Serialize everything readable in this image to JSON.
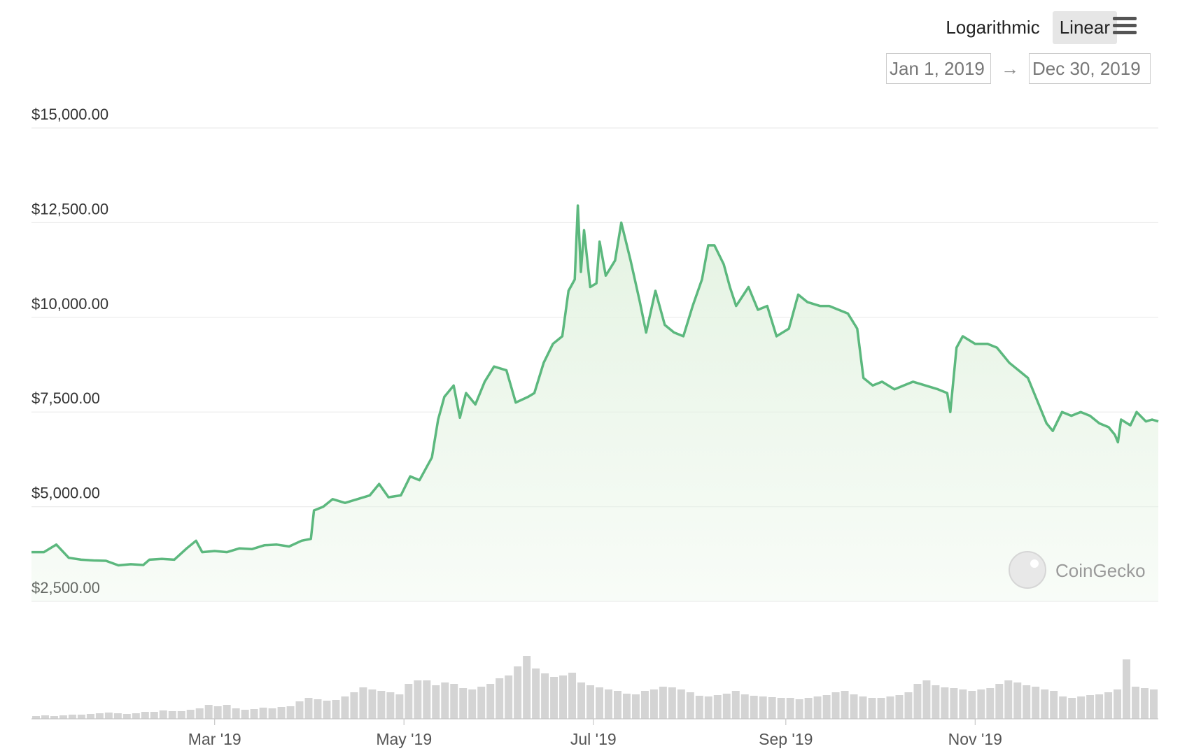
{
  "toolbar": {
    "scale_options": [
      "Logarithmic",
      "Linear"
    ],
    "active_scale": "Linear"
  },
  "range": {
    "from": "Jan 1, 2019",
    "to": "Dec 30, 2019",
    "arrow": "→"
  },
  "watermark": {
    "text": "CoinGecko"
  },
  "colors": {
    "line": "#5cb87e",
    "fill": "#e4f3e2",
    "volume": "#d4d4d4",
    "grid": "#ececec"
  },
  "chart_data": {
    "type": "area",
    "y_scale": "linear",
    "ylim": [
      2500,
      15000
    ],
    "y_ticks": [
      2500,
      5000,
      7500,
      10000,
      12500,
      15000
    ],
    "y_tick_labels": [
      "$2,500.00",
      "$5,000.00",
      "$7,500.00",
      "$10,000.00",
      "$12,500.00",
      "$15,000.00"
    ],
    "x_tick_labels": [
      "Mar '19",
      "May '19",
      "Jul '19",
      "Sep '19",
      "Nov '19"
    ],
    "x_tick_dates": [
      "2019-03-01",
      "2019-05-01",
      "2019-07-01",
      "2019-09-01",
      "2019-11-01"
    ],
    "x_range": [
      "2019-01-01",
      "2019-12-30"
    ],
    "grid": true,
    "legend": "none",
    "series": [
      {
        "kind": "price",
        "points": [
          [
            "2019-01-01",
            3800
          ],
          [
            "2019-01-05",
            3800
          ],
          [
            "2019-01-09",
            4000
          ],
          [
            "2019-01-13",
            3650
          ],
          [
            "2019-01-17",
            3600
          ],
          [
            "2019-01-21",
            3580
          ],
          [
            "2019-01-25",
            3570
          ],
          [
            "2019-01-29",
            3450
          ],
          [
            "2019-02-02",
            3480
          ],
          [
            "2019-02-06",
            3460
          ],
          [
            "2019-02-08",
            3600
          ],
          [
            "2019-02-12",
            3620
          ],
          [
            "2019-02-16",
            3600
          ],
          [
            "2019-02-20",
            3900
          ],
          [
            "2019-02-23",
            4100
          ],
          [
            "2019-02-25",
            3800
          ],
          [
            "2019-03-01",
            3830
          ],
          [
            "2019-03-05",
            3800
          ],
          [
            "2019-03-09",
            3900
          ],
          [
            "2019-03-13",
            3880
          ],
          [
            "2019-03-17",
            3980
          ],
          [
            "2019-03-21",
            4000
          ],
          [
            "2019-03-25",
            3950
          ],
          [
            "2019-03-29",
            4100
          ],
          [
            "2019-04-01",
            4150
          ],
          [
            "2019-04-02",
            4900
          ],
          [
            "2019-04-05",
            5000
          ],
          [
            "2019-04-08",
            5200
          ],
          [
            "2019-04-12",
            5100
          ],
          [
            "2019-04-16",
            5200
          ],
          [
            "2019-04-20",
            5300
          ],
          [
            "2019-04-23",
            5600
          ],
          [
            "2019-04-26",
            5250
          ],
          [
            "2019-04-30",
            5300
          ],
          [
            "2019-05-03",
            5800
          ],
          [
            "2019-05-06",
            5700
          ],
          [
            "2019-05-10",
            6300
          ],
          [
            "2019-05-12",
            7300
          ],
          [
            "2019-05-14",
            7900
          ],
          [
            "2019-05-17",
            8200
          ],
          [
            "2019-05-19",
            7350
          ],
          [
            "2019-05-21",
            8000
          ],
          [
            "2019-05-24",
            7700
          ],
          [
            "2019-05-27",
            8300
          ],
          [
            "2019-05-30",
            8700
          ],
          [
            "2019-06-03",
            8600
          ],
          [
            "2019-06-06",
            7750
          ],
          [
            "2019-06-10",
            7900
          ],
          [
            "2019-06-12",
            8000
          ],
          [
            "2019-06-15",
            8800
          ],
          [
            "2019-06-18",
            9300
          ],
          [
            "2019-06-21",
            9500
          ],
          [
            "2019-06-23",
            10700
          ],
          [
            "2019-06-25",
            11000
          ],
          [
            "2019-06-26",
            12950
          ],
          [
            "2019-06-27",
            11200
          ],
          [
            "2019-06-28",
            12300
          ],
          [
            "2019-06-30",
            10800
          ],
          [
            "2019-07-02",
            10900
          ],
          [
            "2019-07-03",
            12000
          ],
          [
            "2019-07-05",
            11100
          ],
          [
            "2019-07-08",
            11500
          ],
          [
            "2019-07-10",
            12500
          ],
          [
            "2019-07-13",
            11500
          ],
          [
            "2019-07-16",
            10400
          ],
          [
            "2019-07-18",
            9600
          ],
          [
            "2019-07-21",
            10700
          ],
          [
            "2019-07-24",
            9800
          ],
          [
            "2019-07-27",
            9600
          ],
          [
            "2019-07-30",
            9500
          ],
          [
            "2019-08-02",
            10300
          ],
          [
            "2019-08-05",
            11000
          ],
          [
            "2019-08-07",
            11900
          ],
          [
            "2019-08-09",
            11900
          ],
          [
            "2019-08-12",
            11400
          ],
          [
            "2019-08-14",
            10800
          ],
          [
            "2019-08-16",
            10300
          ],
          [
            "2019-08-20",
            10800
          ],
          [
            "2019-08-23",
            10200
          ],
          [
            "2019-08-26",
            10300
          ],
          [
            "2019-08-29",
            9500
          ],
          [
            "2019-09-02",
            9700
          ],
          [
            "2019-09-05",
            10600
          ],
          [
            "2019-09-08",
            10400
          ],
          [
            "2019-09-12",
            10300
          ],
          [
            "2019-09-15",
            10300
          ],
          [
            "2019-09-18",
            10200
          ],
          [
            "2019-09-21",
            10100
          ],
          [
            "2019-09-24",
            9700
          ],
          [
            "2019-09-26",
            8400
          ],
          [
            "2019-09-29",
            8200
          ],
          [
            "2019-10-02",
            8300
          ],
          [
            "2019-10-06",
            8100
          ],
          [
            "2019-10-09",
            8200
          ],
          [
            "2019-10-12",
            8300
          ],
          [
            "2019-10-16",
            8200
          ],
          [
            "2019-10-20",
            8100
          ],
          [
            "2019-10-23",
            8000
          ],
          [
            "2019-10-24",
            7500
          ],
          [
            "2019-10-26",
            9200
          ],
          [
            "2019-10-28",
            9500
          ],
          [
            "2019-11-01",
            9300
          ],
          [
            "2019-11-05",
            9300
          ],
          [
            "2019-11-08",
            9200
          ],
          [
            "2019-11-12",
            8800
          ],
          [
            "2019-11-15",
            8600
          ],
          [
            "2019-11-18",
            8400
          ],
          [
            "2019-11-21",
            7800
          ],
          [
            "2019-11-24",
            7200
          ],
          [
            "2019-11-26",
            7000
          ],
          [
            "2019-11-29",
            7500
          ],
          [
            "2019-12-02",
            7400
          ],
          [
            "2019-12-05",
            7500
          ],
          [
            "2019-12-08",
            7400
          ],
          [
            "2019-12-11",
            7200
          ],
          [
            "2019-12-14",
            7100
          ],
          [
            "2019-12-16",
            6900
          ],
          [
            "2019-12-17",
            6700
          ],
          [
            "2019-12-18",
            7300
          ],
          [
            "2019-12-21",
            7150
          ],
          [
            "2019-12-23",
            7500
          ],
          [
            "2019-12-26",
            7250
          ],
          [
            "2019-12-28",
            7300
          ],
          [
            "2019-12-30",
            7250
          ]
        ]
      },
      {
        "kind": "volume",
        "relative_heights": [
          0.04,
          0.05,
          0.04,
          0.05,
          0.06,
          0.06,
          0.07,
          0.08,
          0.09,
          0.08,
          0.07,
          0.08,
          0.1,
          0.1,
          0.12,
          0.11,
          0.11,
          0.13,
          0.15,
          0.2,
          0.18,
          0.2,
          0.15,
          0.13,
          0.14,
          0.16,
          0.15,
          0.17,
          0.18,
          0.25,
          0.3,
          0.28,
          0.26,
          0.27,
          0.32,
          0.38,
          0.45,
          0.42,
          0.4,
          0.38,
          0.35,
          0.5,
          0.55,
          0.55,
          0.48,
          0.52,
          0.5,
          0.44,
          0.42,
          0.46,
          0.5,
          0.58,
          0.62,
          0.75,
          0.9,
          0.72,
          0.65,
          0.6,
          0.62,
          0.66,
          0.52,
          0.48,
          0.45,
          0.42,
          0.4,
          0.36,
          0.35,
          0.4,
          0.42,
          0.46,
          0.45,
          0.42,
          0.38,
          0.33,
          0.32,
          0.34,
          0.36,
          0.4,
          0.35,
          0.33,
          0.32,
          0.31,
          0.3,
          0.3,
          0.28,
          0.3,
          0.32,
          0.34,
          0.38,
          0.4,
          0.35,
          0.32,
          0.3,
          0.3,
          0.32,
          0.34,
          0.38,
          0.5,
          0.55,
          0.48,
          0.45,
          0.44,
          0.42,
          0.4,
          0.42,
          0.44,
          0.5,
          0.55,
          0.52,
          0.48,
          0.46,
          0.42,
          0.4,
          0.32,
          0.3,
          0.32,
          0.34,
          0.35,
          0.38,
          0.42,
          0.85,
          0.46,
          0.44,
          0.42
        ]
      }
    ]
  }
}
